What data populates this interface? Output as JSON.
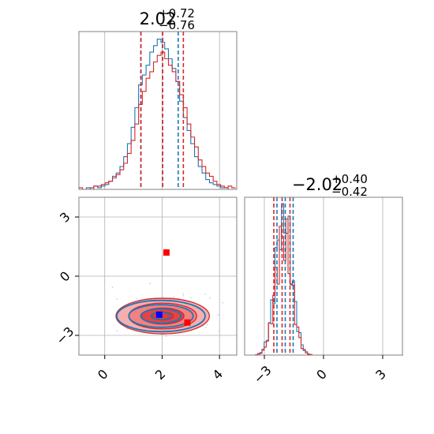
{
  "colors": {
    "blue": "#1f77b4",
    "red": "#d62728",
    "red_fill": "#f4a6a6",
    "red_fill_dark": "#e03a3a",
    "grid": "#b0b0b0",
    "frame": "#808080",
    "marker_red": "#ff0000",
    "marker_blue": "#0000ff"
  },
  "chart_data": [
    {
      "type": "histogram",
      "panel": "top-left",
      "title": {
        "main": "2.02",
        "upper": "+0.72",
        "lower": "−0.76"
      },
      "xlim": [
        -0.9,
        4.6
      ],
      "grid": true,
      "series": [
        {
          "name": "",
          "color": "#1f77b4",
          "bin_start": -0.9,
          "bin_width": 0.13,
          "counts": [
            0,
            0,
            1,
            0,
            2,
            1,
            2,
            3,
            5,
            8,
            10,
            14,
            20,
            28,
            38,
            50,
            64,
            70,
            76,
            84,
            88,
            92,
            90,
            86,
            80,
            74,
            66,
            54,
            44,
            36,
            28,
            20,
            14,
            10,
            6,
            4,
            3,
            2,
            1,
            1,
            0,
            0
          ],
          "quantiles": [
            1.26,
            2.02,
            2.56
          ]
        },
        {
          "name": "",
          "color": "#d62728",
          "bin_start": -0.9,
          "bin_width": 0.13,
          "counts": [
            1,
            0,
            0,
            1,
            2,
            2,
            3,
            4,
            5,
            7,
            9,
            12,
            16,
            22,
            30,
            40,
            52,
            60,
            68,
            72,
            78,
            82,
            84,
            80,
            76,
            72,
            66,
            58,
            50,
            40,
            32,
            26,
            18,
            14,
            10,
            8,
            5,
            3,
            2,
            1,
            2,
            1
          ],
          "quantiles": [
            1.26,
            2.02,
            2.74
          ]
        }
      ]
    },
    {
      "type": "contour",
      "panel": "bottom-left",
      "xlim": [
        -0.9,
        4.6
      ],
      "ylim": [
        -4.0,
        4.0
      ],
      "xticks": [
        "0",
        "2",
        "4"
      ],
      "yticks": [
        "3",
        "0",
        "−3"
      ],
      "grid": true,
      "series": [
        {
          "name": "",
          "color": "#d62728",
          "center": [
            2.02,
            -2.02
          ],
          "sigma": [
            0.74,
            0.41
          ],
          "filled": true
        },
        {
          "name": "",
          "color": "#1f77b4",
          "center": [
            1.96,
            -2.02
          ],
          "sigma": [
            0.7,
            0.36
          ],
          "filled": false
        }
      ],
      "markers": [
        {
          "color": "#ff0000",
          "x": 2.15,
          "y": 1.2
        },
        {
          "color": "#ff0000",
          "x": 2.88,
          "y": -2.35
        },
        {
          "color": "#0000ff",
          "x": 1.9,
          "y": -1.95
        }
      ]
    },
    {
      "type": "histogram",
      "panel": "bottom-right",
      "title": {
        "main": "−2.02",
        "upper": "+0.40",
        "lower": "−0.42"
      },
      "xlim": [
        -4.0,
        4.0
      ],
      "xticks": [
        "−3",
        "0",
        "3"
      ],
      "grid": true,
      "series": [
        {
          "name": "",
          "color": "#1f77b4",
          "quantiles": [
            -2.44,
            -2.02,
            -1.62
          ]
        },
        {
          "name": "",
          "color": "#d62728",
          "quantiles": [
            -2.44,
            -2.02,
            -1.62
          ]
        }
      ]
    }
  ]
}
